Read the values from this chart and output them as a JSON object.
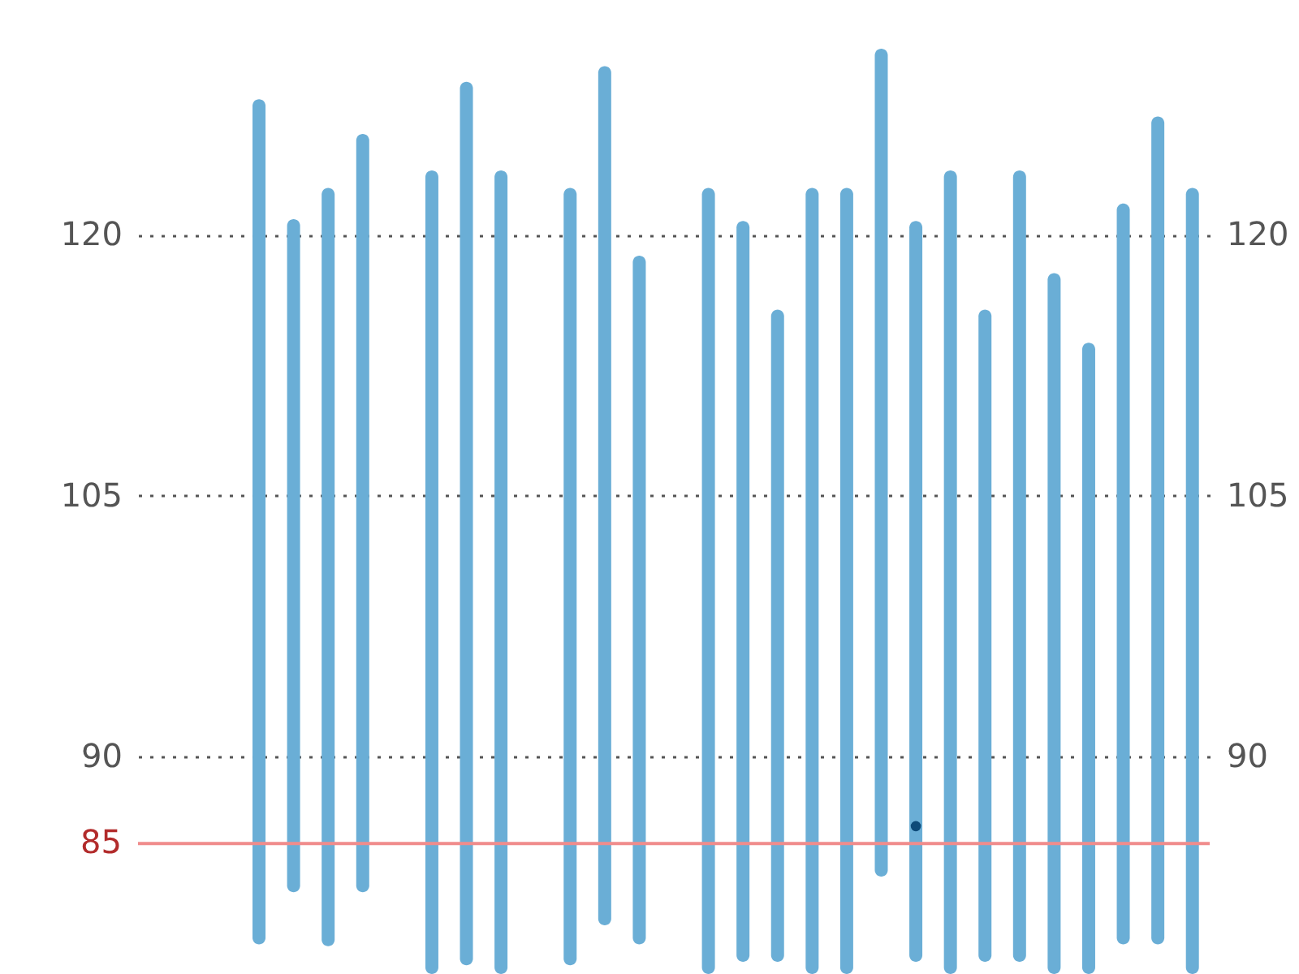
{
  "chart_data": {
    "type": "bar",
    "categories": [
      null,
      null,
      null,
      null,
      null,
      null,
      null,
      null,
      null,
      null,
      null,
      null,
      null,
      null,
      null,
      null,
      null,
      null,
      null,
      null,
      null,
      null,
      null,
      null,
      null,
      null,
      null,
      null,
      null,
      null,
      null
    ],
    "series": [
      {
        "color": "#6aaed6",
        "base": [
          null,
          null,
          null,
          79.2,
          82.2,
          79.1,
          82.2,
          null,
          77.5,
          78.0,
          77.5,
          null,
          78.0,
          80.3,
          79.2,
          null,
          77.5,
          78.2,
          78.2,
          77.5,
          77.5,
          83.1,
          78.2,
          77.5,
          78.2,
          78.2,
          77.5,
          77.5,
          79.2,
          79.2,
          77.5
        ],
        "values": [
          null,
          null,
          null,
          48.6,
          38.7,
          43.6,
          43.6,
          null,
          46.2,
          50.8,
          46.2,
          null,
          44.7,
          49.4,
          39.6,
          null,
          45.2,
          42.6,
          37.5,
          45.2,
          45.2,
          47.6,
          42.6,
          46.2,
          37.5,
          45.5,
          40.3,
          36.3,
          42.6,
          47.6,
          45.2
        ]
      },
      {
        "type": "line",
        "color": "#0d4a78",
        "values": [
          null,
          null,
          null,
          null,
          null,
          null,
          null,
          null,
          null,
          null,
          null,
          null,
          null,
          null,
          null,
          null,
          null,
          null,
          null,
          null,
          null,
          null,
          86,
          null,
          null,
          null,
          null,
          null,
          null,
          null,
          null
        ]
      }
    ],
    "ylim": [
      77.5,
      133.5
    ],
    "yticks": [
      90,
      105,
      120
    ],
    "y2lim": [
      77.5,
      133.5
    ],
    "y2ticks": [
      90,
      105,
      120
    ],
    "grid": "y",
    "marker": "circle",
    "tick_labels": "y",
    "ref_lines": [
      {
        "axis": "y",
        "value": 85,
        "label": "85",
        "color": "#f08c8c"
      }
    ]
  }
}
